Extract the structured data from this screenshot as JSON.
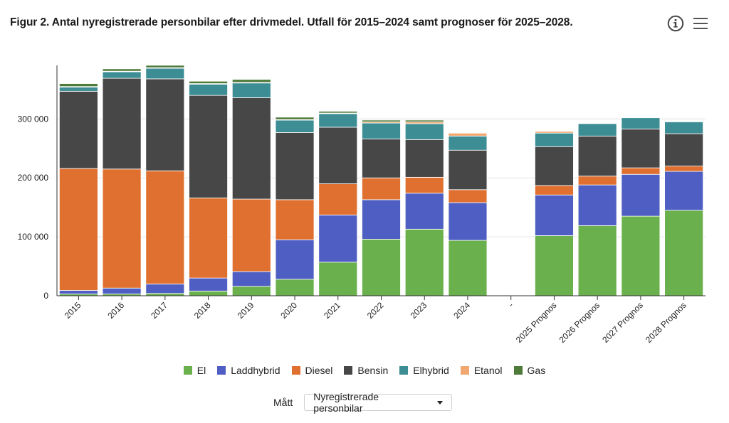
{
  "header": {
    "title": "Figur 2. Antal nyregistrerade personbilar efter drivmedel. Utfall för 2015–2024 samt prognoser för 2025–2028.",
    "info_icon": "info-circle-icon",
    "menu_icon": "hamburger-menu-icon"
  },
  "controls": {
    "measure_label": "Mått",
    "measure_value": "Nyregistrerade personbilar"
  },
  "chart_data": {
    "type": "bar",
    "stacked": true,
    "categories": [
      "2015",
      "2016",
      "2017",
      "2018",
      "2019",
      "2020",
      "2021",
      "2022",
      "2023",
      "2024",
      "-",
      "2025 Prognos",
      "2026 Prognos",
      "2027 Prognos",
      "2028 Prognos"
    ],
    "series": [
      {
        "name": "El",
        "color": "#6ab04c",
        "values": [
          3000,
          3000,
          4000,
          8000,
          16000,
          28000,
          57000,
          96000,
          113000,
          94000,
          null,
          102000,
          119000,
          135000,
          145000
        ]
      },
      {
        "name": "Laddhybrid",
        "color": "#4f5ec2",
        "values": [
          6000,
          10000,
          16000,
          22000,
          25000,
          67000,
          80000,
          67000,
          61000,
          64000,
          null,
          69000,
          69000,
          71000,
          66000
        ]
      },
      {
        "name": "Diesel",
        "color": "#e07030",
        "values": [
          207000,
          202000,
          192000,
          136000,
          123000,
          68000,
          53000,
          37000,
          27000,
          22000,
          null,
          16000,
          15000,
          11000,
          9000
        ]
      },
      {
        "name": "Bensin",
        "color": "#474747",
        "values": [
          131000,
          154000,
          156000,
          174000,
          172000,
          114000,
          96000,
          66000,
          64000,
          67000,
          null,
          66000,
          68000,
          66000,
          55000
        ]
      },
      {
        "name": "Elhybrid",
        "color": "#3c8d94",
        "values": [
          7000,
          11000,
          18000,
          19000,
          25000,
          21000,
          23000,
          27000,
          27000,
          24000,
          null,
          23000,
          21000,
          19000,
          20000
        ]
      },
      {
        "name": "Etanol",
        "color": "#f0a870",
        "values": [
          1000,
          1000,
          1000,
          1000,
          1000,
          1000,
          1000,
          2000,
          3000,
          5000,
          null,
          3000,
          0,
          0,
          0
        ]
      },
      {
        "name": "Gas",
        "color": "#4e7a3a",
        "values": [
          5000,
          4000,
          4000,
          4000,
          5000,
          4000,
          3000,
          3000,
          3000,
          1000,
          null,
          1000,
          0,
          1000,
          0
        ]
      }
    ],
    "y_ticks": [
      0,
      100000,
      200000,
      300000
    ],
    "y_tick_labels": [
      "0",
      "100 000",
      "200 000",
      "300 000"
    ],
    "ylim": [
      0,
      392000
    ],
    "grid": true,
    "legend_position": "bottom"
  }
}
